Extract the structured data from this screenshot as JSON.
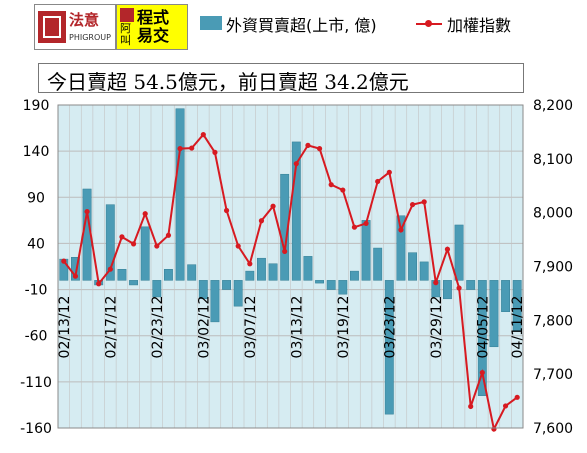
{
  "logos": {
    "logo1": {
      "brand": "法意",
      "sub": "PHIGROUP"
    },
    "logo2": {
      "small": "阿叫",
      "big": "程式\n易交"
    }
  },
  "legend": {
    "bar_label": "外資買賣超(上市, 億)",
    "line_label": "加權指數"
  },
  "summary": "今日賣超 54.5億元，前日賣超 34.2億元",
  "colors": {
    "bar": "#4a9bb5",
    "line": "#d71a21",
    "plot_bg": "#d6ecf2"
  },
  "chart_data": {
    "type": "bar+line",
    "left_axis": {
      "min": -160,
      "max": 190,
      "ticks": [
        190,
        140,
        90,
        40,
        -10,
        -60,
        -110,
        -160
      ]
    },
    "right_axis": {
      "min": 7600,
      "max": 8200,
      "ticks": [
        "8,200",
        "8,100",
        "8,000",
        "7,900",
        "7,800",
        "7,700",
        "7,600"
      ]
    },
    "x_labels": [
      {
        "index": 0,
        "label": "02/13/12"
      },
      {
        "index": 4,
        "label": "02/17/12"
      },
      {
        "index": 8,
        "label": "02/23/12"
      },
      {
        "index": 12,
        "label": "03/02/12"
      },
      {
        "index": 16,
        "label": "03/07/12"
      },
      {
        "index": 20,
        "label": "03/13/12"
      },
      {
        "index": 24,
        "label": "03/19/12"
      },
      {
        "index": 28,
        "label": "03/23/12"
      },
      {
        "index": 32,
        "label": "03/29/12"
      },
      {
        "index": 36,
        "label": "04/05/12"
      },
      {
        "index": 39,
        "label": "04/11/12"
      }
    ],
    "series": [
      {
        "name": "外資買賣超(上市, 億)",
        "type": "bar",
        "values": [
          23,
          25,
          99,
          -5,
          82,
          12,
          -5,
          58,
          -18,
          12,
          186,
          17,
          -20,
          -45,
          -10,
          -28,
          10,
          24,
          18,
          115,
          150,
          26,
          -3,
          -10,
          -15,
          10,
          65,
          35,
          -145,
          70,
          30,
          20,
          -18,
          -20,
          60,
          -10,
          -125,
          -72,
          -34,
          -54.5
        ]
      },
      {
        "name": "加權指數",
        "type": "line",
        "values": [
          7910,
          7882,
          8002,
          7868,
          7895,
          7955,
          7942,
          7998,
          7938,
          7958,
          8119,
          8120,
          8145,
          8112,
          8004,
          7938,
          7905,
          7985,
          8012,
          7928,
          8091,
          8125,
          8119,
          8052,
          8042,
          7973,
          7980,
          8058,
          8075,
          7968,
          8015,
          8020,
          7870,
          7932,
          7860,
          7640,
          7703,
          7598,
          7641,
          7657
        ]
      }
    ]
  }
}
